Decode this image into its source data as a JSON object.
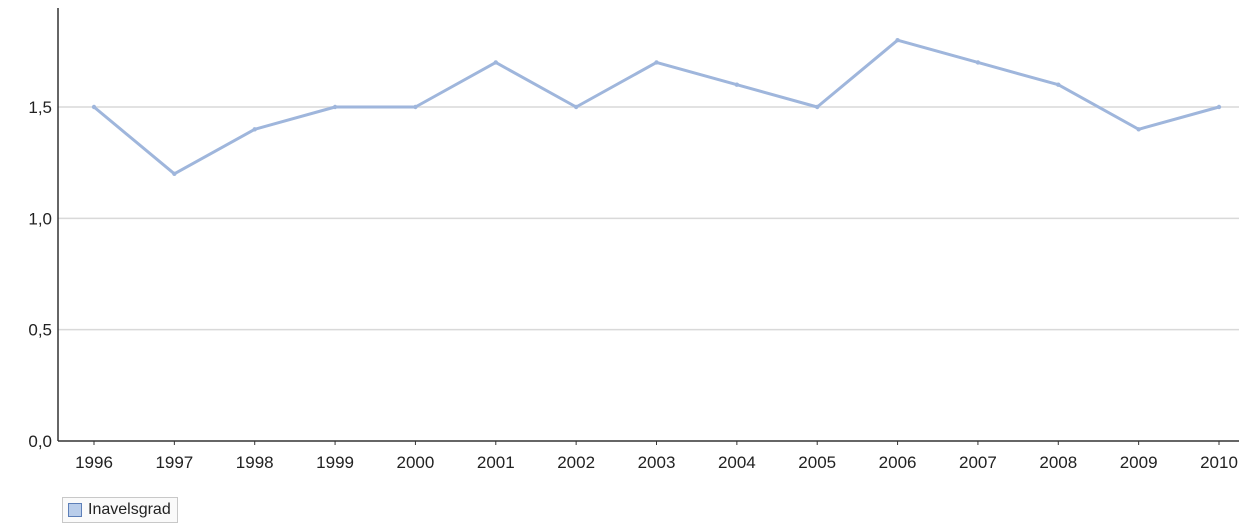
{
  "chart_data": {
    "type": "line",
    "x": [
      "1996",
      "1997",
      "1998",
      "1999",
      "2000",
      "2001",
      "2002",
      "2003",
      "2004",
      "2005",
      "2006",
      "2007",
      "2008",
      "2009",
      "2010"
    ],
    "series": [
      {
        "name": "Inavelsgrad",
        "values": [
          1.5,
          1.2,
          1.4,
          1.5,
          1.5,
          1.7,
          1.5,
          1.7,
          1.6,
          1.5,
          1.8,
          1.7,
          1.6,
          1.4,
          1.5
        ]
      }
    ],
    "yticks": [
      "0,0",
      "0,5",
      "1,0",
      "1,5"
    ],
    "ytick_values": [
      0,
      0.5,
      1.0,
      1.5
    ],
    "ylim": [
      0,
      1.8
    ],
    "grid": true,
    "legend": "bottom-left",
    "colors": {
      "line": "#9fb6dc",
      "grid": "#d9d9d9",
      "axis": "#333333",
      "legend_fill": "#b9cdea",
      "legend_border": "#5d7fb8"
    }
  }
}
